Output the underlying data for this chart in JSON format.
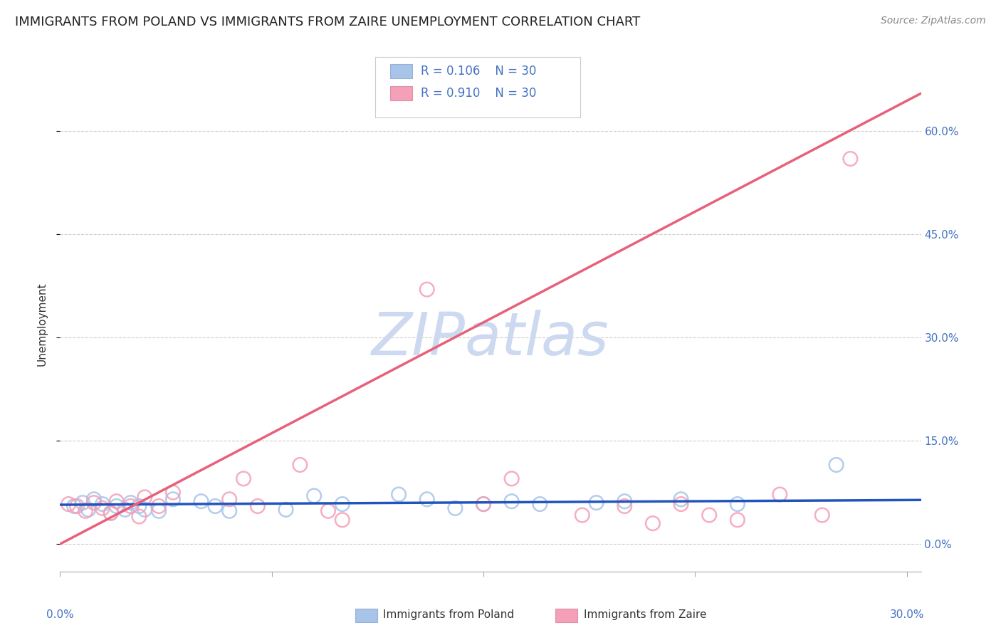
{
  "title": "IMMIGRANTS FROM POLAND VS IMMIGRANTS FROM ZAIRE UNEMPLOYMENT CORRELATION CHART",
  "source": "Source: ZipAtlas.com",
  "ylabel": "Unemployment",
  "ytick_labels": [
    "0.0%",
    "15.0%",
    "30.0%",
    "45.0%",
    "60.0%"
  ],
  "ytick_values": [
    0.0,
    0.15,
    0.3,
    0.45,
    0.6
  ],
  "xlim": [
    0.0,
    0.305
  ],
  "ylim": [
    -0.04,
    0.68
  ],
  "poland_color": "#a8c4e8",
  "zaire_color": "#f4a0b8",
  "poland_line_color": "#2255bb",
  "zaire_line_color": "#e8607a",
  "watermark_color": "#cdd9f0",
  "poland_scatter_x": [
    0.005,
    0.008,
    0.01,
    0.012,
    0.015,
    0.018,
    0.02,
    0.023,
    0.025,
    0.028,
    0.03,
    0.035,
    0.04,
    0.05,
    0.055,
    0.06,
    0.08,
    0.09,
    0.1,
    0.12,
    0.13,
    0.14,
    0.15,
    0.16,
    0.17,
    0.19,
    0.2,
    0.22,
    0.24,
    0.275
  ],
  "poland_scatter_y": [
    0.055,
    0.06,
    0.05,
    0.065,
    0.058,
    0.045,
    0.055,
    0.05,
    0.06,
    0.055,
    0.05,
    0.048,
    0.065,
    0.062,
    0.055,
    0.048,
    0.05,
    0.07,
    0.058,
    0.072,
    0.065,
    0.052,
    0.058,
    0.062,
    0.058,
    0.06,
    0.062,
    0.065,
    0.058,
    0.115
  ],
  "zaire_scatter_x": [
    0.003,
    0.006,
    0.009,
    0.012,
    0.015,
    0.018,
    0.02,
    0.025,
    0.028,
    0.03,
    0.035,
    0.04,
    0.06,
    0.065,
    0.07,
    0.085,
    0.095,
    0.1,
    0.13,
    0.15,
    0.16,
    0.185,
    0.2,
    0.21,
    0.22,
    0.23,
    0.24,
    0.255,
    0.27,
    0.28
  ],
  "zaire_scatter_y": [
    0.058,
    0.055,
    0.048,
    0.06,
    0.052,
    0.045,
    0.062,
    0.055,
    0.04,
    0.068,
    0.055,
    0.075,
    0.065,
    0.095,
    0.055,
    0.115,
    0.048,
    0.035,
    0.37,
    0.058,
    0.095,
    0.042,
    0.055,
    0.03,
    0.058,
    0.042,
    0.035,
    0.072,
    0.042,
    0.56
  ],
  "poland_trend_x": [
    0.0,
    0.305
  ],
  "poland_trend_y": [
    0.057,
    0.064
  ],
  "zaire_trend_x": [
    0.0,
    0.305
  ],
  "zaire_trend_y": [
    0.0,
    0.655
  ],
  "title_fontsize": 13,
  "source_fontsize": 10,
  "label_fontsize": 11,
  "tick_fontsize": 11,
  "legend_fontsize": 12
}
